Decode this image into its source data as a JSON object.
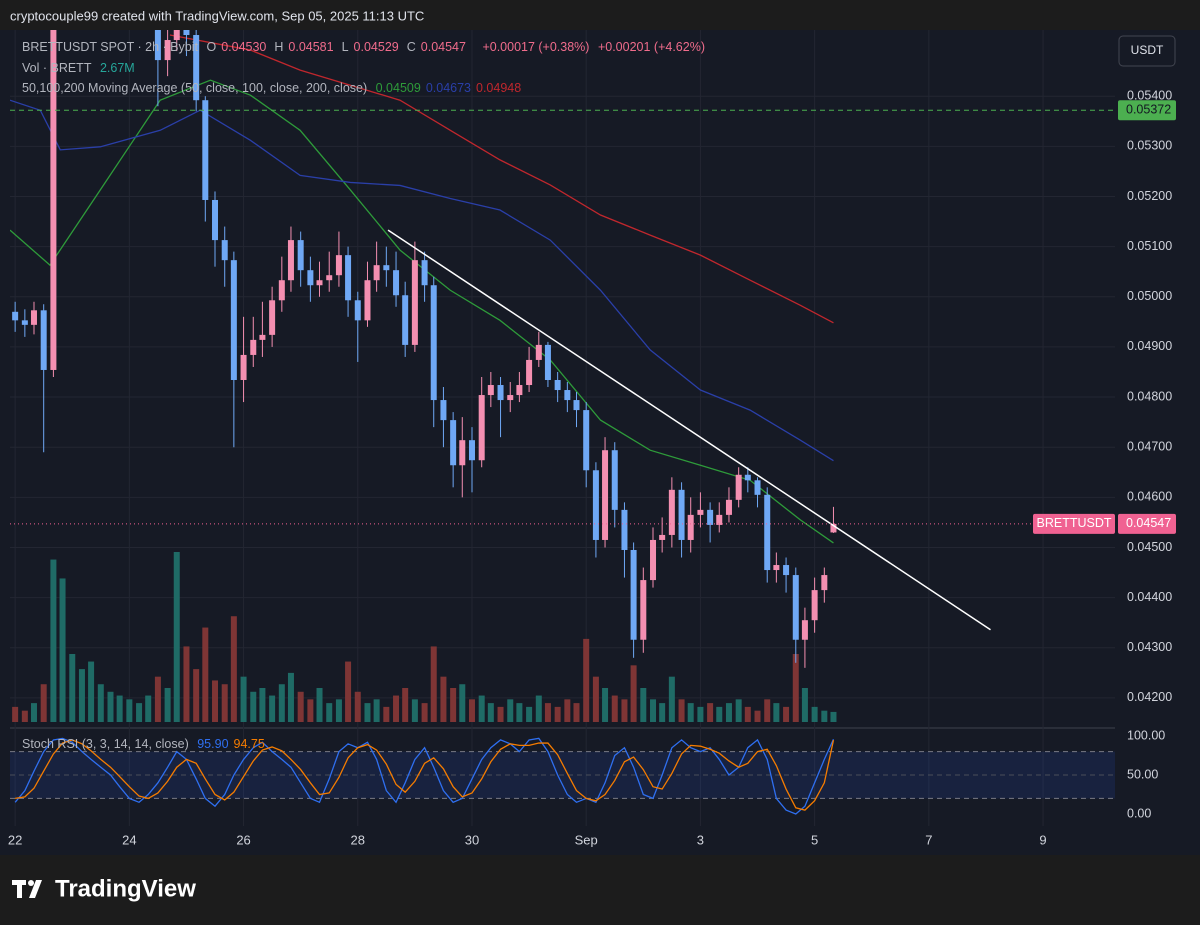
{
  "header": "cryptocouple99 created with TradingView.com, Sep 05, 2025 11:13 UTC",
  "footer": "TradingView",
  "currency": "USDT",
  "chart_data": {
    "type": "candlestick",
    "legend": {
      "symbol": "BRETTUSDT SPOT · 2h · Bybit",
      "ohlc": [
        {
          "label": "O",
          "value": "0.04530"
        },
        {
          "label": "H",
          "value": "0.04581"
        },
        {
          "label": "L",
          "value": "0.04529"
        },
        {
          "label": "C",
          "value": "0.04547"
        }
      ],
      "change": "+0.00017 (+0.38%)",
      "change_day": "+0.00201 (+4.62%)",
      "volume_title": "Vol · BRETT",
      "volume_value": "2.67M",
      "ma_title": "50,100,200 Moving Average (50, close, 100, close, 200, close)",
      "stoch_title": "Stoch RSI (3, 3, 14, 14, close)"
    },
    "up_color": "#f48fb1",
    "down_color": "#6fa8f5",
    "volume_up_color": "#1f6b66",
    "volume_down_color": "#7e3535",
    "x": [
      0,
      0.17,
      0.33,
      0.5,
      0.67,
      0.83,
      1,
      1.17,
      1.33,
      1.5,
      1.67,
      1.83,
      2,
      2.17,
      2.33,
      2.5,
      2.67,
      2.83,
      3,
      3.17,
      3.33,
      3.5,
      3.67,
      3.83,
      4,
      4.17,
      4.33,
      4.5,
      4.67,
      4.83,
      5,
      5.17,
      5.33,
      5.5,
      5.67,
      5.83,
      6,
      6.17,
      6.33,
      6.5,
      6.67,
      6.83,
      7,
      7.17,
      7.33,
      7.5,
      7.67,
      7.83,
      8,
      8.17,
      8.33,
      8.5,
      8.67,
      8.83,
      9,
      9.17,
      9.33,
      9.5,
      9.67,
      9.83,
      10,
      10.17,
      10.33,
      10.5,
      10.67,
      10.83,
      11,
      11.17,
      11.33,
      11.5,
      11.67,
      11.83,
      12,
      12.17,
      12.33,
      12.5,
      12.67,
      12.83,
      13,
      13.17,
      13.33,
      13.5,
      13.67,
      13.83,
      14,
      14.17,
      14.33
    ],
    "open": [
      0.0497,
      0.04953,
      0.04944,
      0.04973,
      0.04854,
      null,
      null,
      null,
      null,
      null,
      null,
      null,
      null,
      null,
      null,
      0.0556,
      0.05472,
      0.05512,
      0.05532,
      0.05522,
      0.05392,
      0.05193,
      0.05113,
      0.05073,
      0.04834,
      0.04884,
      0.04914,
      0.04924,
      0.04993,
      0.05033,
      0.05113,
      0.05053,
      0.05023,
      0.05033,
      0.05043,
      0.05083,
      0.04993,
      0.04953,
      0.05033,
      0.05063,
      0.05053,
      0.05003,
      0.04904,
      0.05073,
      0.05023,
      0.04794,
      0.04754,
      0.04664,
      0.04714,
      0.04674,
      0.04804,
      0.04824,
      0.04794,
      0.04804,
      0.04824,
      0.04874,
      0.04904,
      0.04834,
      0.04814,
      0.04794,
      0.04774,
      0.04654,
      0.04515,
      0.04694,
      0.04575,
      0.04495,
      0.04316,
      0.04435,
      0.04515,
      0.04525,
      0.04615,
      0.04515,
      0.04565,
      0.04575,
      0.04545,
      0.04565,
      0.04595,
      0.04645,
      0.04634,
      0.04605,
      0.04455,
      0.04465,
      0.04445,
      0.04316,
      0.04355,
      0.04415,
      0.0453
    ],
    "high": [
      0.0499,
      0.04975,
      0.0499,
      0.04985,
      0.056,
      null,
      null,
      null,
      null,
      null,
      null,
      null,
      null,
      null,
      null,
      0.0558,
      0.0556,
      0.0558,
      0.0558,
      0.0556,
      0.054,
      0.0521,
      0.0514,
      0.0509,
      0.0496,
      0.0496,
      0.0499,
      0.0502,
      0.0508,
      0.0514,
      0.0513,
      0.0508,
      0.0507,
      0.0509,
      0.0513,
      0.051,
      0.0501,
      0.0507,
      0.0511,
      0.051,
      0.0509,
      0.0503,
      0.0511,
      0.0509,
      0.0504,
      0.0482,
      0.0477,
      0.0476,
      0.0474,
      0.0484,
      0.0485,
      0.0484,
      0.0483,
      0.0485,
      0.049,
      0.0493,
      0.0491,
      0.0485,
      0.0483,
      0.0481,
      0.0479,
      0.0467,
      0.0472,
      0.0471,
      0.0459,
      0.0451,
      0.0446,
      0.0454,
      0.0456,
      0.0464,
      0.0463,
      0.046,
      0.0461,
      0.0459,
      0.0459,
      0.0462,
      0.0466,
      0.0466,
      0.0464,
      0.0462,
      0.0449,
      0.0448,
      0.0446,
      0.0438,
      0.0444,
      0.0446,
      0.04581
    ],
    "low": [
      0.0493,
      0.0492,
      0.04925,
      0.0469,
      0.0484,
      null,
      null,
      null,
      null,
      null,
      null,
      null,
      null,
      null,
      null,
      0.0538,
      0.0544,
      0.0549,
      0.0548,
      0.0537,
      0.0515,
      0.0506,
      0.0502,
      0.047,
      0.0479,
      0.0486,
      0.0488,
      0.049,
      0.0497,
      0.0501,
      0.0502,
      0.0499,
      0.05,
      0.0501,
      0.0502,
      0.0496,
      0.0487,
      0.0494,
      0.0501,
      0.0502,
      0.0498,
      0.0488,
      0.0489,
      0.0499,
      0.0474,
      0.047,
      0.0462,
      0.046,
      0.0461,
      0.0466,
      0.0478,
      0.0472,
      0.0477,
      0.0479,
      0.0481,
      0.0486,
      0.0482,
      0.0479,
      0.0477,
      0.0474,
      0.0462,
      0.0448,
      0.045,
      0.0454,
      0.0444,
      0.0428,
      0.0429,
      0.0442,
      0.0449,
      0.045,
      0.0448,
      0.0449,
      0.0454,
      0.0451,
      0.0453,
      0.0455,
      0.0458,
      0.0461,
      0.0458,
      0.0443,
      0.0443,
      0.0441,
      0.0427,
      0.0426,
      0.0433,
      0.0439,
      0.04529
    ],
    "close": [
      0.04953,
      0.04944,
      0.04973,
      0.04854,
      0.0558,
      null,
      null,
      null,
      null,
      null,
      null,
      null,
      null,
      null,
      null,
      0.05472,
      0.05512,
      0.05532,
      0.05522,
      0.05392,
      0.05193,
      0.05113,
      0.05073,
      0.04834,
      0.04884,
      0.04914,
      0.04924,
      0.04993,
      0.05033,
      0.05113,
      0.05053,
      0.05023,
      0.05033,
      0.05043,
      0.05083,
      0.04993,
      0.04953,
      0.05033,
      0.05063,
      0.05053,
      0.05003,
      0.04904,
      0.05073,
      0.05023,
      0.04794,
      0.04754,
      0.04664,
      0.04714,
      0.04674,
      0.04804,
      0.04824,
      0.04794,
      0.04804,
      0.04824,
      0.04874,
      0.04904,
      0.04834,
      0.04814,
      0.04794,
      0.04774,
      0.04654,
      0.04515,
      0.04694,
      0.04575,
      0.04495,
      0.04316,
      0.04435,
      0.04515,
      0.04525,
      0.04615,
      0.04515,
      0.04565,
      0.04575,
      0.04545,
      0.04565,
      0.04595,
      0.04645,
      0.04634,
      0.04605,
      0.04455,
      0.04465,
      0.04445,
      0.04316,
      0.04355,
      0.04415,
      0.04445,
      0.04547
    ],
    "volume": [
      4,
      3,
      5,
      10,
      43,
      38,
      18,
      14,
      16,
      10,
      8,
      7,
      6,
      5,
      7,
      12,
      9,
      45,
      20,
      14,
      25,
      11,
      10,
      28,
      12,
      8,
      9,
      7,
      10,
      13,
      8,
      6,
      9,
      5,
      6,
      16,
      8,
      5,
      6,
      4,
      7,
      9,
      6,
      5,
      20,
      12,
      9,
      10,
      6,
      7,
      5,
      4,
      6,
      5,
      4,
      7,
      5,
      4,
      6,
      5,
      22,
      12,
      9,
      7,
      6,
      15,
      9,
      6,
      5,
      12,
      6,
      5,
      4,
      5,
      4,
      5,
      6,
      4,
      3,
      6,
      5,
      4,
      18,
      9,
      4,
      3,
      2.67
    ],
    "moving_averages": [
      {
        "color": "#2e9b3a",
        "value_label": "0.04509",
        "x": [
          -0.09,
          0.61,
          1.49,
          2.54,
          3.42,
          4.12,
          4.99,
          5.87,
          6.74,
          7.62,
          8.49,
          9.37,
          10.25,
          11.12,
          12,
          12.87,
          13.75,
          14.33
        ],
        "values": [
          0.05133,
          0.05063,
          0.05213,
          0.05392,
          0.05432,
          0.05402,
          0.05332,
          0.05213,
          0.05093,
          0.05013,
          0.04953,
          0.04874,
          0.04754,
          0.04694,
          0.04664,
          0.04634,
          0.04555,
          0.04509
        ]
      },
      {
        "color": "#2a3fa8",
        "value_label": "0.04673",
        "x": [
          -0.09,
          0.44,
          0.79,
          1.49,
          2.54,
          3.24,
          4.12,
          4.99,
          5.87,
          6.74,
          7.62,
          8.49,
          9.37,
          10.25,
          11.12,
          12,
          12.87,
          13.75,
          14.33
        ],
        "values": [
          0.05392,
          0.05372,
          0.05293,
          0.05299,
          0.05332,
          0.05372,
          0.05312,
          0.05242,
          0.05228,
          0.05222,
          0.05196,
          0.05173,
          0.05113,
          0.05013,
          0.04894,
          0.04814,
          0.04774,
          0.04714,
          0.04673
        ]
      },
      {
        "color": "#c0272d",
        "value_label": "0.04948",
        "x": [
          2.71,
          4.12,
          4.99,
          6.74,
          7.62,
          8.49,
          9.37,
          10.25,
          11.12,
          12,
          12.87,
          13.75,
          14.33
        ],
        "values": [
          0.05522,
          0.05492,
          0.05452,
          0.05392,
          0.05332,
          0.05273,
          0.05223,
          0.05163,
          0.05123,
          0.05083,
          0.05033,
          0.04983,
          0.04948
        ]
      }
    ],
    "trendline": {
      "x": [
        6.53,
        17.08
      ],
      "y": [
        0.05133,
        0.04336
      ],
      "color": "#ffffff"
    },
    "level": {
      "value": 0.05372,
      "label": "0.05372",
      "color": "#4caf50"
    },
    "last_price": {
      "value": 0.04547,
      "label": "0.04547",
      "name": "BRETTUSDT",
      "color": "#f06292"
    },
    "xlim": [
      -0.09,
      19.26
    ],
    "xticks": [
      {
        "value": 0,
        "label": "22"
      },
      {
        "value": 2,
        "label": "24"
      },
      {
        "value": 4,
        "label": "26"
      },
      {
        "value": 6,
        "label": "28"
      },
      {
        "value": 8,
        "label": "30"
      },
      {
        "value": 10,
        "label": "Sep"
      },
      {
        "value": 12,
        "label": "3"
      },
      {
        "value": 14,
        "label": "5"
      },
      {
        "value": 16,
        "label": "7"
      },
      {
        "value": 18,
        "label": "9"
      }
    ],
    "ylim": [
      0.0414,
      0.05532
    ],
    "yticks": [
      {
        "value": 0.042,
        "label": "0.04200"
      },
      {
        "value": 0.043,
        "label": "0.04300"
      },
      {
        "value": 0.044,
        "label": "0.04400"
      },
      {
        "value": 0.045,
        "label": "0.04500"
      },
      {
        "value": 0.046,
        "label": "0.04600"
      },
      {
        "value": 0.047,
        "label": "0.04700"
      },
      {
        "value": 0.048,
        "label": "0.04800"
      },
      {
        "value": 0.049,
        "label": "0.04900"
      },
      {
        "value": 0.05,
        "label": "0.05000"
      },
      {
        "value": 0.051,
        "label": "0.05100"
      },
      {
        "value": 0.052,
        "label": "0.05200"
      },
      {
        "value": 0.053,
        "label": "0.05300"
      },
      {
        "value": 0.054,
        "label": "0.05400"
      }
    ],
    "grid": true,
    "stoch": {
      "k": {
        "color": "#2f6ff0",
        "value_label": "95.90",
        "values": [
          15,
          30,
          55,
          80,
          95,
          97,
          92,
          80,
          70,
          60,
          50,
          35,
          20,
          15,
          25,
          40,
          60,
          80,
          70,
          45,
          20,
          10,
          25,
          50,
          70,
          85,
          92,
          80,
          70,
          60,
          40,
          20,
          15,
          45,
          80,
          90,
          85,
          92,
          70,
          30,
          15,
          40,
          70,
          85,
          60,
          30,
          15,
          20,
          45,
          70,
          85,
          95,
          90,
          80,
          95,
          97,
          80,
          50,
          25,
          15,
          20,
          15,
          40,
          75,
          85,
          60,
          25,
          20,
          50,
          85,
          95,
          85,
          80,
          85,
          70,
          50,
          60,
          85,
          95,
          70,
          20,
          5,
          0,
          10,
          40,
          70,
          95.9
        ]
      },
      "d": {
        "color": "#f57c00",
        "value_label": "94.75",
        "values": [
          20,
          22,
          33,
          55,
          77,
          91,
          95,
          90,
          81,
          70,
          60,
          48,
          35,
          23,
          20,
          27,
          42,
          60,
          70,
          65,
          45,
          25,
          18,
          28,
          48,
          68,
          82,
          86,
          81,
          70,
          57,
          40,
          25,
          27,
          47,
          72,
          85,
          89,
          82,
          64,
          38,
          28,
          42,
          65,
          72,
          58,
          35,
          22,
          27,
          45,
          67,
          83,
          90,
          88,
          88,
          91,
          91,
          76,
          52,
          30,
          20,
          17,
          25,
          43,
          67,
          73,
          57,
          35,
          32,
          52,
          77,
          88,
          87,
          83,
          78,
          68,
          60,
          65,
          80,
          83,
          62,
          32,
          8,
          5,
          17,
          40,
          94.75
        ]
      },
      "band": [
        20,
        80
      ],
      "ylim": [
        -15.4,
        110.3
      ],
      "yticks": [
        {
          "value": 0,
          "label": "0.00"
        },
        {
          "value": 50,
          "label": "50.00"
        },
        {
          "value": 100,
          "label": "100.00"
        }
      ]
    }
  }
}
